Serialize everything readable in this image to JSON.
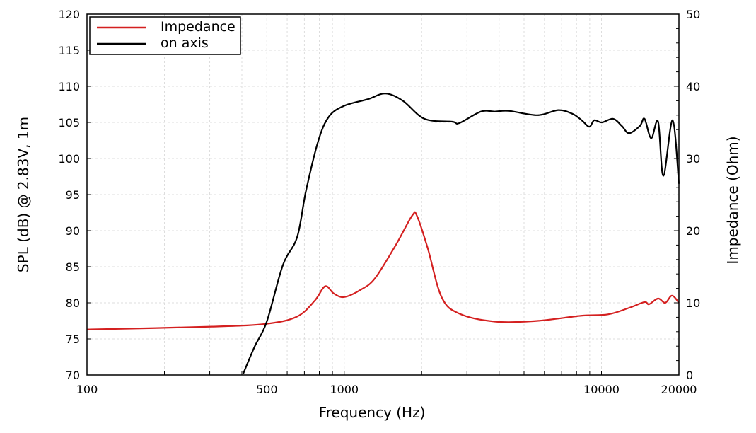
{
  "chart_data": {
    "type": "line",
    "title": "",
    "xlabel": "Frequency (Hz)",
    "ylabel": "SPL (dB) @ 2.83V, 1m",
    "y2label": "Impedance (Ohm)",
    "xscale": "log",
    "xlim": [
      100,
      20000
    ],
    "ylim": [
      70,
      120
    ],
    "y2lim": [
      0,
      50
    ],
    "xticks": [
      100,
      500,
      1000,
      10000,
      20000
    ],
    "yticks": [
      70,
      75,
      80,
      85,
      90,
      95,
      100,
      105,
      110,
      115,
      120
    ],
    "y2ticks": [
      0,
      10,
      20,
      30,
      40,
      50
    ],
    "grid": true,
    "legend_position": "top-left",
    "series": [
      {
        "name": "Impedance",
        "axis": "right",
        "color": "#d42020",
        "x": [
          100,
          307,
          500,
          656,
          768,
          843,
          910,
          1000,
          1157,
          1317,
          1592,
          1838,
          1920,
          2110,
          2390,
          2800,
          3850,
          5640,
          8280,
          10600,
          12800,
          14700,
          15300,
          16600,
          17700,
          18800,
          20000
        ],
        "y": [
          6.3,
          6.7,
          7.1,
          8.1,
          10.3,
          12.3,
          11.3,
          10.8,
          11.8,
          13.4,
          18.1,
          22.1,
          22.0,
          17.6,
          10.8,
          8.5,
          7.4,
          7.5,
          8.2,
          8.4,
          9.3,
          10.1,
          9.8,
          10.6,
          10.0,
          11.0,
          10.0
        ]
      },
      {
        "name": "on axis",
        "axis": "left",
        "color": "#000000",
        "x": [
          405,
          448,
          500,
          577,
          656,
          710,
          792,
          872,
          1000,
          1232,
          1445,
          1690,
          2050,
          2630,
          2800,
          3400,
          3850,
          4360,
          5640,
          6790,
          7700,
          8380,
          8970,
          9370,
          10040,
          11100,
          12000,
          12800,
          14100,
          14700,
          15600,
          16600,
          17400,
          18900,
          20000
        ],
        "y": [
          70.2,
          73.9,
          77.4,
          85.2,
          89.1,
          95.5,
          102.4,
          105.8,
          107.3,
          108.2,
          109.0,
          108.0,
          105.5,
          105.1,
          104.9,
          106.5,
          106.5,
          106.6,
          106.0,
          106.7,
          106.2,
          105.3,
          104.4,
          105.3,
          105.0,
          105.5,
          104.5,
          103.5,
          104.5,
          105.5,
          102.8,
          105.1,
          97.6,
          105.3,
          96.5
        ]
      }
    ]
  }
}
